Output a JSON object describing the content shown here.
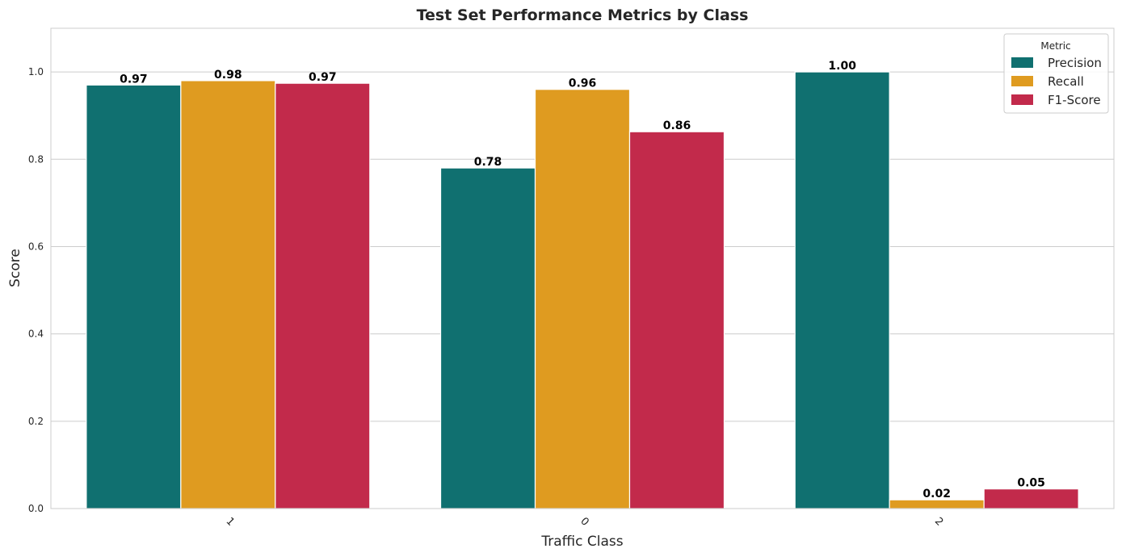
{
  "chart_data": {
    "type": "bar",
    "title": "Test Set Performance Metrics by Class",
    "xlabel": "Traffic Class",
    "ylabel": "Score",
    "categories": [
      "1",
      "0",
      "2"
    ],
    "ylim": [
      0,
      1.1
    ],
    "yticks": [
      "0.0",
      "0.2",
      "0.4",
      "0.6",
      "0.8",
      "1.0"
    ],
    "grid": true,
    "legend": {
      "title": "Metric",
      "placement": "top-right"
    },
    "series": [
      {
        "name": "Precision",
        "color": "#107070",
        "values": [
          0.97,
          0.78,
          1.0
        ],
        "labels": [
          "0.97",
          "0.78",
          "1.00"
        ]
      },
      {
        "name": "Recall",
        "color": "#df9b20",
        "values": [
          0.98,
          0.96,
          0.02
        ],
        "labels": [
          "0.98",
          "0.96",
          "0.02"
        ]
      },
      {
        "name": "F1-Score",
        "color": "#c22a4b",
        "values": [
          0.974,
          0.863,
          0.045
        ],
        "labels": [
          "0.97",
          "0.86",
          "0.05"
        ]
      }
    ]
  }
}
